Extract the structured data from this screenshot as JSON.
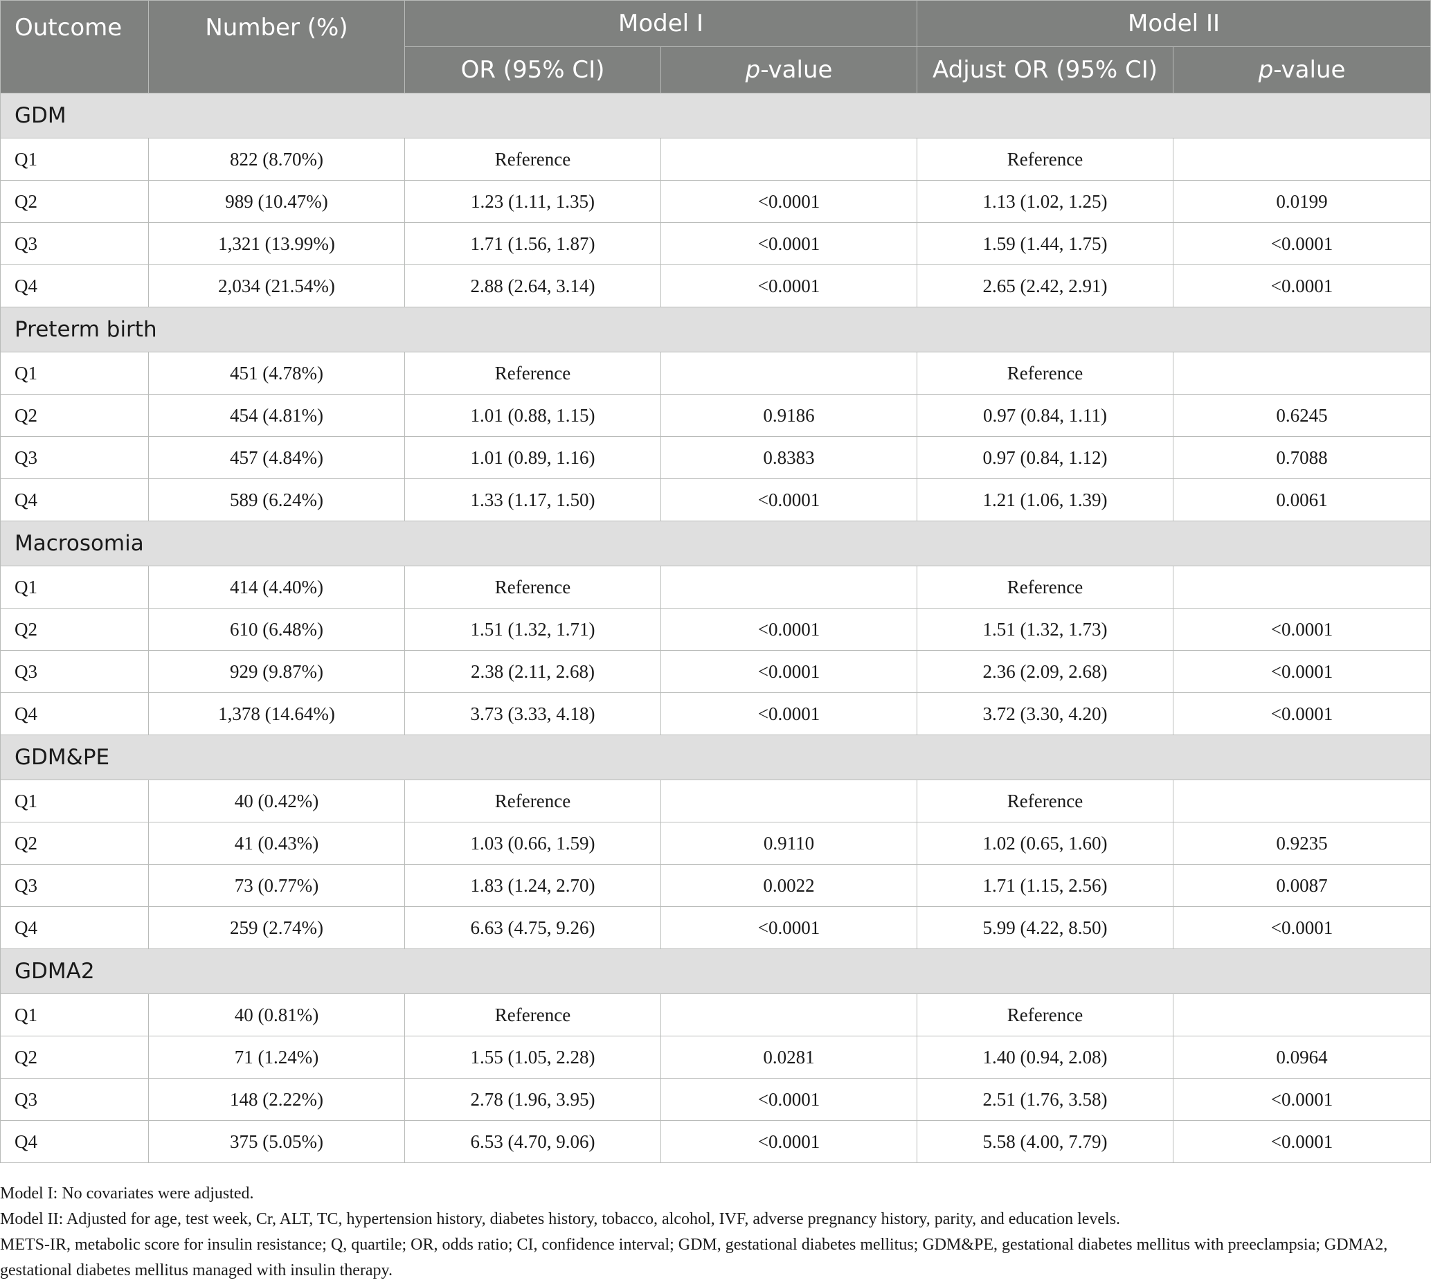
{
  "header": {
    "outcome": "Outcome",
    "number": "Number (%)",
    "model1": "Model I",
    "model2": "Model II",
    "or_ci": "OR (95% CI)",
    "adjust_or_ci": "Adjust OR (95% CI)",
    "p_italic": "p",
    "p_suffix": "-value"
  },
  "groups": [
    {
      "name": "GDM",
      "rows": [
        {
          "q": "Q1",
          "number": "822 (8.70%)",
          "or1": "Reference",
          "p1": "",
          "or2": "Reference",
          "p2": ""
        },
        {
          "q": "Q2",
          "number": "989 (10.47%)",
          "or1": "1.23 (1.11, 1.35)",
          "p1": "<0.0001",
          "or2": "1.13 (1.02, 1.25)",
          "p2": "0.0199"
        },
        {
          "q": "Q3",
          "number": "1,321 (13.99%)",
          "or1": "1.71 (1.56, 1.87)",
          "p1": "<0.0001",
          "or2": "1.59 (1.44, 1.75)",
          "p2": "<0.0001"
        },
        {
          "q": "Q4",
          "number": "2,034 (21.54%)",
          "or1": "2.88 (2.64, 3.14)",
          "p1": "<0.0001",
          "or2": "2.65 (2.42, 2.91)",
          "p2": "<0.0001"
        }
      ]
    },
    {
      "name": "Preterm birth",
      "rows": [
        {
          "q": "Q1",
          "number": "451 (4.78%)",
          "or1": "Reference",
          "p1": "",
          "or2": "Reference",
          "p2": ""
        },
        {
          "q": "Q2",
          "number": "454 (4.81%)",
          "or1": "1.01 (0.88, 1.15)",
          "p1": "0.9186",
          "or2": "0.97 (0.84, 1.11)",
          "p2": "0.6245"
        },
        {
          "q": "Q3",
          "number": "457 (4.84%)",
          "or1": "1.01 (0.89, 1.16)",
          "p1": "0.8383",
          "or2": "0.97 (0.84, 1.12)",
          "p2": "0.7088"
        },
        {
          "q": "Q4",
          "number": "589 (6.24%)",
          "or1": "1.33 (1.17, 1.50)",
          "p1": "<0.0001",
          "or2": "1.21 (1.06, 1.39)",
          "p2": "0.0061"
        }
      ]
    },
    {
      "name": "Macrosomia",
      "rows": [
        {
          "q": "Q1",
          "number": "414 (4.40%)",
          "or1": "Reference",
          "p1": "",
          "or2": "Reference",
          "p2": ""
        },
        {
          "q": "Q2",
          "number": "610 (6.48%)",
          "or1": "1.51 (1.32, 1.71)",
          "p1": "<0.0001",
          "or2": "1.51 (1.32, 1.73)",
          "p2": "<0.0001"
        },
        {
          "q": "Q3",
          "number": "929 (9.87%)",
          "or1": "2.38 (2.11, 2.68)",
          "p1": "<0.0001",
          "or2": "2.36 (2.09, 2.68)",
          "p2": "<0.0001"
        },
        {
          "q": "Q4",
          "number": "1,378 (14.64%)",
          "or1": "3.73 (3.33, 4.18)",
          "p1": "<0.0001",
          "or2": "3.72 (3.30, 4.20)",
          "p2": "<0.0001"
        }
      ]
    },
    {
      "name": "GDM&PE",
      "rows": [
        {
          "q": "Q1",
          "number": "40 (0.42%)",
          "or1": "Reference",
          "p1": "",
          "or2": "Reference",
          "p2": ""
        },
        {
          "q": "Q2",
          "number": "41 (0.43%)",
          "or1": "1.03 (0.66, 1.59)",
          "p1": "0.9110",
          "or2": "1.02 (0.65, 1.60)",
          "p2": "0.9235"
        },
        {
          "q": "Q3",
          "number": "73 (0.77%)",
          "or1": "1.83 (1.24, 2.70)",
          "p1": "0.0022",
          "or2": "1.71 (1.15, 2.56)",
          "p2": "0.0087"
        },
        {
          "q": "Q4",
          "number": "259 (2.74%)",
          "or1": "6.63 (4.75, 9.26)",
          "p1": "<0.0001",
          "or2": "5.99 (4.22, 8.50)",
          "p2": "<0.0001"
        }
      ]
    },
    {
      "name": "GDMA2",
      "rows": [
        {
          "q": "Q1",
          "number": "40 (0.81%)",
          "or1": "Reference",
          "p1": "",
          "or2": "Reference",
          "p2": ""
        },
        {
          "q": "Q2",
          "number": "71 (1.24%)",
          "or1": "1.55 (1.05, 2.28)",
          "p1": "0.0281",
          "or2": "1.40 (0.94, 2.08)",
          "p2": "0.0964"
        },
        {
          "q": "Q3",
          "number": "148 (2.22%)",
          "or1": "2.78 (1.96, 3.95)",
          "p1": "<0.0001",
          "or2": "2.51 (1.76, 3.58)",
          "p2": "<0.0001"
        },
        {
          "q": "Q4",
          "number": "375 (5.05%)",
          "or1": "6.53 (4.70, 9.06)",
          "p1": "<0.0001",
          "or2": "5.58 (4.00, 7.79)",
          "p2": "<0.0001"
        }
      ]
    }
  ],
  "footnotes": [
    "Model I: No covariates were adjusted.",
    "Model II: Adjusted for age, test week, Cr, ALT, TC, hypertension history, diabetes history, tobacco, alcohol, IVF, adverse pregnancy history, parity, and education levels.",
    "METS-IR, metabolic score for insulin resistance; Q, quartile; OR, odds ratio; CI, confidence interval; GDM, gestational diabetes mellitus; GDM&PE, gestational diabetes mellitus with preeclampsia; GDMA2, gestational diabetes mellitus managed with insulin therapy."
  ]
}
